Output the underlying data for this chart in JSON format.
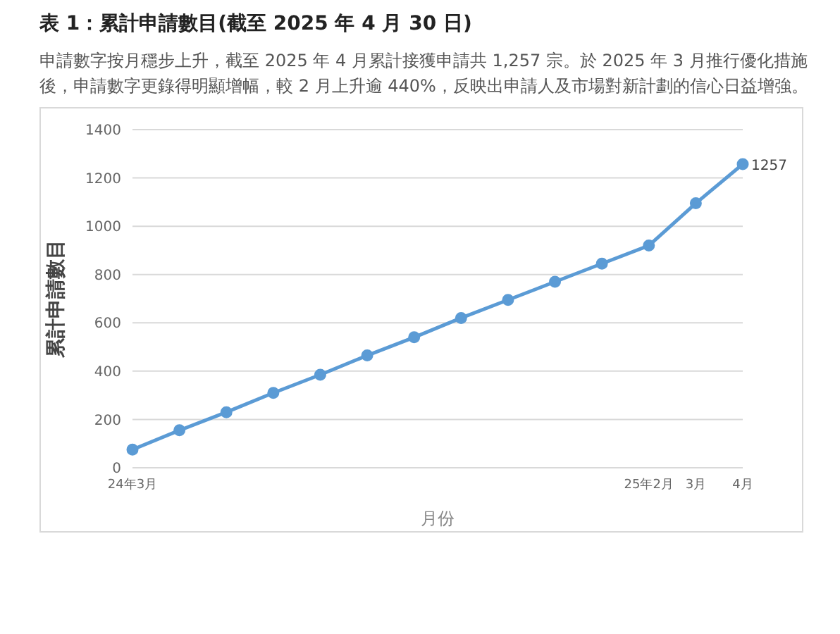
{
  "chart_data": {
    "type": "line",
    "title": "表 1：累計申請數目(截至 2025 年 4 月 30 日)",
    "subtitle": "申請數字按月穩步上升，截至 2025 年 4 月累計接獲申請共 1,257 宗。於 2025 年 3 月推行優化措施後，申請數字更錄得明顯增幅，較 2 月上升逾 440%，反映出申請人及市場對新計劃的信心日益增強。",
    "xlabel": "月份",
    "ylabel": "累計申請數目",
    "categories": [
      "24年3月",
      null,
      null,
      null,
      null,
      null,
      null,
      null,
      null,
      null,
      null,
      "25年2月",
      "3月",
      "4月"
    ],
    "series": [
      {
        "color": "#5b9bd5",
        "values": [
          75,
          155,
          230,
          310,
          385,
          465,
          540,
          620,
          695,
          770,
          845,
          920,
          1095,
          1257
        ],
        "value_labels": [
          null,
          null,
          null,
          null,
          null,
          null,
          null,
          null,
          null,
          null,
          null,
          null,
          null,
          "1257"
        ]
      }
    ],
    "ylim": [
      0,
      1400
    ],
    "yticks": [
      0,
      200,
      400,
      600,
      800,
      1000,
      1200,
      1400
    ],
    "grid": "y",
    "legend": false,
    "marker": "circle",
    "line_style": "solid"
  }
}
